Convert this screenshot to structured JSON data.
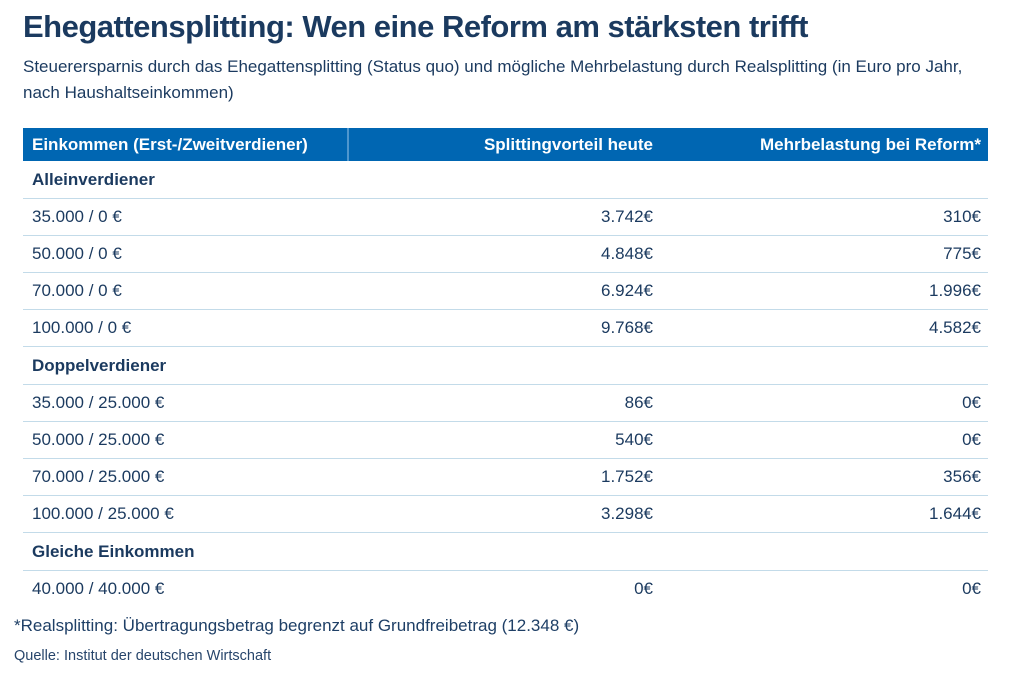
{
  "colors": {
    "header_bg": "#0066b2",
    "header_divider": "#4e96ce",
    "header_text": "#ffffff",
    "text": "#1b3a5f",
    "row_line": "#c3dbe9",
    "background": "#ffffff"
  },
  "header": {
    "title": "Ehegattensplitting: Wen eine Reform am stärksten trifft",
    "subtitle": "Steuerersparnis durch das Ehegattensplitting (Status quo) und mögliche Mehrbelastung durch Realsplitting (in Euro pro Jahr, nach Haushaltseinkommen)"
  },
  "table": {
    "columns": [
      "Einkommen (Erst-/Zweitverdiener)",
      "Splittingvorteil heute",
      "Mehrbelastung bei Reform*"
    ],
    "sections": [
      {
        "label": "Alleinverdiener",
        "rows": [
          {
            "income": "35.000 / 0 €",
            "advantage": "3.742€",
            "burden": "310€"
          },
          {
            "income": "50.000 / 0 €",
            "advantage": "4.848€",
            "burden": "775€"
          },
          {
            "income": "70.000 / 0 €",
            "advantage": "6.924€",
            "burden": "1.996€"
          },
          {
            "income": "100.000 / 0 €",
            "advantage": "9.768€",
            "burden": "4.582€"
          }
        ]
      },
      {
        "label": "Doppelverdiener",
        "rows": [
          {
            "income": "35.000 / 25.000 €",
            "advantage": "86€",
            "burden": "0€"
          },
          {
            "income": "50.000 / 25.000 €",
            "advantage": "540€",
            "burden": "0€"
          },
          {
            "income": "70.000 / 25.000 €",
            "advantage": "1.752€",
            "burden": "356€"
          },
          {
            "income": "100.000 / 25.000 €",
            "advantage": "3.298€",
            "burden": "1.644€"
          }
        ]
      },
      {
        "label": "Gleiche Einkommen",
        "rows": [
          {
            "income": "40.000 / 40.000 €",
            "advantage": "0€",
            "burden": "0€"
          }
        ]
      }
    ]
  },
  "footer": {
    "footnote": "*Realsplitting: Übertragungsbetrag begrenzt auf Grundfreibetrag (12.348 €)",
    "source": "Quelle: Institut der deutschen Wirtschaft"
  },
  "chart_data": {
    "type": "table",
    "title": "Ehegattensplitting: Wen eine Reform am stärksten trifft",
    "subtitle": "Steuerersparnis durch das Ehegattensplitting (Status quo) und mögliche Mehrbelastung durch Realsplitting (in Euro pro Jahr, nach Haushaltseinkommen)",
    "columns": [
      "Einkommen (Erst-/Zweitverdiener)",
      "Splittingvorteil heute",
      "Mehrbelastung bei Reform*"
    ],
    "units": "Euro pro Jahr",
    "groups": [
      {
        "group": "Alleinverdiener",
        "rows": [
          {
            "einkommen": "35.000 / 0 €",
            "splittingvorteil_eur": 3742,
            "mehrbelastung_eur": 310
          },
          {
            "einkommen": "50.000 / 0 €",
            "splittingvorteil_eur": 4848,
            "mehrbelastung_eur": 775
          },
          {
            "einkommen": "70.000 / 0 €",
            "splittingvorteil_eur": 6924,
            "mehrbelastung_eur": 1996
          },
          {
            "einkommen": "100.000 / 0 €",
            "splittingvorteil_eur": 9768,
            "mehrbelastung_eur": 4582
          }
        ]
      },
      {
        "group": "Doppelverdiener",
        "rows": [
          {
            "einkommen": "35.000 / 25.000 €",
            "splittingvorteil_eur": 86,
            "mehrbelastung_eur": 0
          },
          {
            "einkommen": "50.000 / 25.000 €",
            "splittingvorteil_eur": 540,
            "mehrbelastung_eur": 0
          },
          {
            "einkommen": "70.000 / 25.000 €",
            "splittingvorteil_eur": 1752,
            "mehrbelastung_eur": 356
          },
          {
            "einkommen": "100.000 / 25.000 €",
            "splittingvorteil_eur": 3298,
            "mehrbelastung_eur": 1644
          }
        ]
      },
      {
        "group": "Gleiche Einkommen",
        "rows": [
          {
            "einkommen": "40.000 / 40.000 €",
            "splittingvorteil_eur": 0,
            "mehrbelastung_eur": 0
          }
        ]
      }
    ],
    "footnote": "*Realsplitting: Übertragungsbetrag begrenzt auf Grundfreibetrag (12.348 €)",
    "source": "Institut der deutschen Wirtschaft"
  }
}
